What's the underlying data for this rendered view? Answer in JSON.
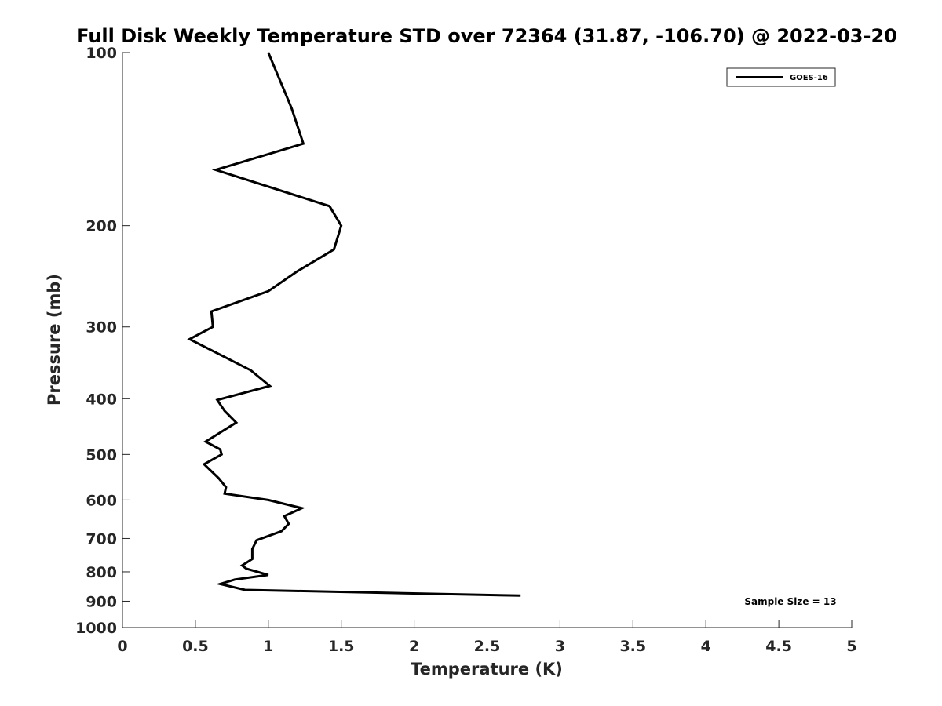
{
  "chart_data": {
    "type": "line",
    "title": "Full Disk Weekly Temperature STD over 72364 (31.87, -106.70) @ 2022-03-20",
    "xlabel": "Temperature (K)",
    "ylabel": "Pressure (mb)",
    "xlim": [
      0,
      5
    ],
    "ylim": [
      100,
      1000
    ],
    "yscale": "log",
    "y_reversed": true,
    "xticks": [
      0,
      0.5,
      1,
      1.5,
      2,
      2.5,
      3,
      3.5,
      4,
      4.5,
      5
    ],
    "xtick_labels": [
      "0",
      "0.5",
      "1",
      "1.5",
      "2",
      "2.5",
      "3",
      "3.5",
      "4",
      "4.5",
      "5"
    ],
    "yticks": [
      100,
      200,
      300,
      400,
      500,
      600,
      700,
      800,
      900,
      1000
    ],
    "ytick_labels": [
      "100",
      "200",
      "300",
      "400",
      "500",
      "600",
      "700",
      "800",
      "900",
      "1000"
    ],
    "grid": false,
    "legend_position": "top-right",
    "annotation": "Sample Size = 13",
    "color": "#000000",
    "series": [
      {
        "name": "GOES-16",
        "points": [
          {
            "x": 1.0,
            "y": 100
          },
          {
            "x": 1.16,
            "y": 125
          },
          {
            "x": 1.24,
            "y": 144
          },
          {
            "x": 0.64,
            "y": 160
          },
          {
            "x": 1.42,
            "y": 185
          },
          {
            "x": 1.5,
            "y": 200
          },
          {
            "x": 1.45,
            "y": 220
          },
          {
            "x": 1.2,
            "y": 240
          },
          {
            "x": 1.0,
            "y": 260
          },
          {
            "x": 0.61,
            "y": 282
          },
          {
            "x": 0.62,
            "y": 300
          },
          {
            "x": 0.46,
            "y": 315
          },
          {
            "x": 0.88,
            "y": 357
          },
          {
            "x": 1.01,
            "y": 380
          },
          {
            "x": 0.65,
            "y": 402
          },
          {
            "x": 0.7,
            "y": 420
          },
          {
            "x": 0.78,
            "y": 440
          },
          {
            "x": 0.57,
            "y": 475
          },
          {
            "x": 0.67,
            "y": 490
          },
          {
            "x": 0.68,
            "y": 500
          },
          {
            "x": 0.56,
            "y": 520
          },
          {
            "x": 0.66,
            "y": 550
          },
          {
            "x": 0.71,
            "y": 570
          },
          {
            "x": 0.7,
            "y": 585
          },
          {
            "x": 1.0,
            "y": 600
          },
          {
            "x": 1.23,
            "y": 620
          },
          {
            "x": 1.11,
            "y": 640
          },
          {
            "x": 1.14,
            "y": 660
          },
          {
            "x": 1.09,
            "y": 680
          },
          {
            "x": 0.92,
            "y": 705
          },
          {
            "x": 0.89,
            "y": 730
          },
          {
            "x": 0.89,
            "y": 760
          },
          {
            "x": 0.82,
            "y": 780
          },
          {
            "x": 0.85,
            "y": 790
          },
          {
            "x": 1.0,
            "y": 810
          },
          {
            "x": 0.77,
            "y": 825
          },
          {
            "x": 0.67,
            "y": 840
          },
          {
            "x": 0.84,
            "y": 860
          },
          {
            "x": 2.73,
            "y": 880
          }
        ]
      }
    ]
  }
}
